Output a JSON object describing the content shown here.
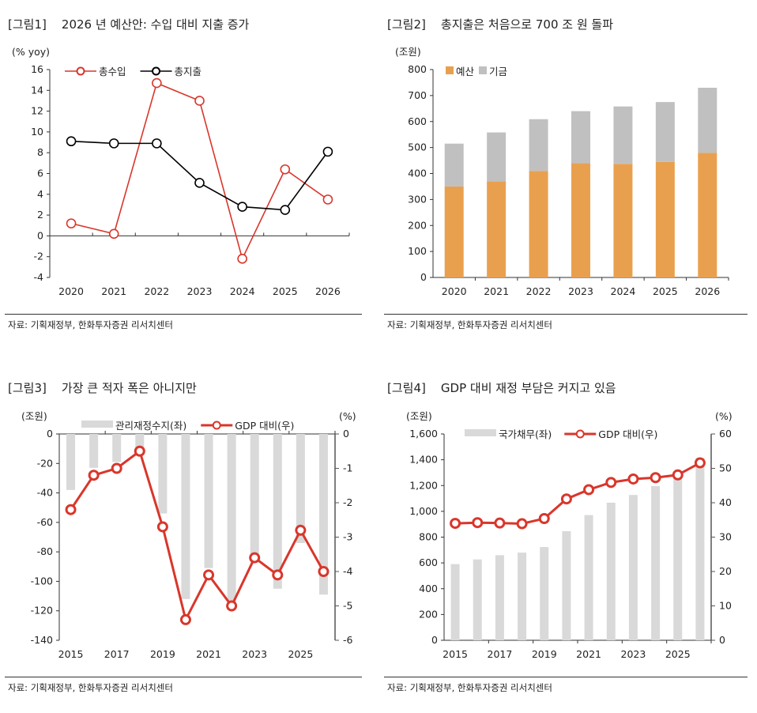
{
  "chart_data": [
    {
      "type": "line",
      "title": "[그림1]    2026 년 예산안: 수입 대비 지출 증가",
      "unit_left": "(% yoy)",
      "categories": [
        "2020",
        "2021",
        "2022",
        "2023",
        "2024",
        "2025",
        "2026"
      ],
      "ylim": [
        -4,
        16
      ],
      "yticks": [
        16,
        14,
        12,
        10,
        8,
        6,
        4,
        2,
        0,
        -2,
        -4
      ],
      "series": [
        {
          "name": "총수입",
          "color": "#d9362b",
          "values": [
            1.2,
            0.2,
            14.7,
            13.0,
            -2.2,
            6.4,
            3.5
          ]
        },
        {
          "name": "총지출",
          "color": "#000000",
          "values": [
            9.1,
            8.9,
            8.9,
            5.1,
            2.8,
            2.5,
            8.1
          ]
        }
      ],
      "legend": "top",
      "source": "자료: 기획재정부, 한화투자증권 리서치센터"
    },
    {
      "type": "stacked-bar",
      "title": "[그림2]    총지출은 처음으로 700 조 원 돌파",
      "unit_left": "(조원)",
      "categories": [
        "2020",
        "2021",
        "2022",
        "2023",
        "2024",
        "2025",
        "2026"
      ],
      "ylim": [
        0,
        800
      ],
      "yticks": [
        800,
        700,
        600,
        500,
        400,
        300,
        200,
        100,
        0
      ],
      "series": [
        {
          "name": "예산",
          "color": "#e9a04e",
          "values": [
            350,
            370,
            410,
            440,
            437,
            445,
            480
          ]
        },
        {
          "name": "기금",
          "color": "#c0c0c0",
          "values": [
            165,
            188,
            199,
            200,
            221,
            230,
            250
          ]
        }
      ],
      "legend": "top-left",
      "source": "자료: 기획재정부, 한화투자증권 리서치센터"
    },
    {
      "type": "bar+line",
      "title": "[그림3]    가장 큰 적자 폭은 아니지만",
      "unit_left": "(조원)",
      "unit_right": "(%)",
      "categories": [
        "2015",
        "2016",
        "2017",
        "2018",
        "2019",
        "2020",
        "2021",
        "2022",
        "2023",
        "2024",
        "2025",
        "2026"
      ],
      "xticklabels": [
        "2015",
        "2017",
        "2019",
        "2021",
        "2023",
        "2025"
      ],
      "ylim": [
        -140,
        0
      ],
      "yticks": [
        0,
        -20,
        -40,
        -60,
        -80,
        -100,
        -120,
        -140
      ],
      "y2lim": [
        -6,
        0
      ],
      "y2ticks": [
        0,
        -1,
        -2,
        -3,
        -4,
        -5,
        -6
      ],
      "series": [
        {
          "name": "관리재정수지(좌)",
          "color": "#d9d9d9",
          "axis": "left",
          "values": [
            -38,
            -23,
            -19,
            -11,
            -54,
            -112,
            -91,
            -117,
            -87,
            -105,
            -74,
            -109
          ]
        },
        {
          "name": "GDP 대비(우)",
          "color": "#d9362b",
          "axis": "right",
          "values": [
            -2.2,
            -1.2,
            -1.0,
            -0.5,
            -2.7,
            -5.4,
            -4.1,
            -5.0,
            -3.6,
            -4.1,
            -2.8,
            -4.0
          ]
        }
      ],
      "legend": "top",
      "source": "자료: 기획재정부, 한화투자증권 리서치센터"
    },
    {
      "type": "bar+line",
      "title": "[그림4]    GDP 대비 재정 부담은 커지고 있음",
      "unit_left": "(조원)",
      "unit_right": "(%)",
      "categories": [
        "2015",
        "2016",
        "2017",
        "2018",
        "2019",
        "2020",
        "2021",
        "2022",
        "2023",
        "2024",
        "2025",
        "2026"
      ],
      "xticklabels": [
        "2015",
        "2017",
        "2019",
        "2021",
        "2023",
        "2025"
      ],
      "ylim": [
        0,
        1600
      ],
      "yticks": [
        "1,600",
        "1,400",
        "1,200",
        "1,000",
        "800",
        "600",
        "400",
        "200",
        "0"
      ],
      "y2lim": [
        0,
        60
      ],
      "y2ticks": [
        60,
        50,
        40,
        30,
        20,
        10,
        0
      ],
      "series": [
        {
          "name": "국가채무(좌)",
          "color": "#d9d9d9",
          "axis": "left",
          "values": [
            591,
            627,
            660,
            680,
            723,
            846,
            971,
            1067,
            1127,
            1196,
            1273,
            1415
          ]
        },
        {
          "name": "GDP 대비(우)",
          "color": "#d9362b",
          "axis": "right",
          "values": [
            34.0,
            34.2,
            34.1,
            33.9,
            35.4,
            41.1,
            43.8,
            45.9,
            46.9,
            47.3,
            48.1,
            51.6
          ]
        }
      ],
      "legend": "top",
      "source": "자료: 기획재정부, 한화투자증권 리서치센터"
    }
  ]
}
